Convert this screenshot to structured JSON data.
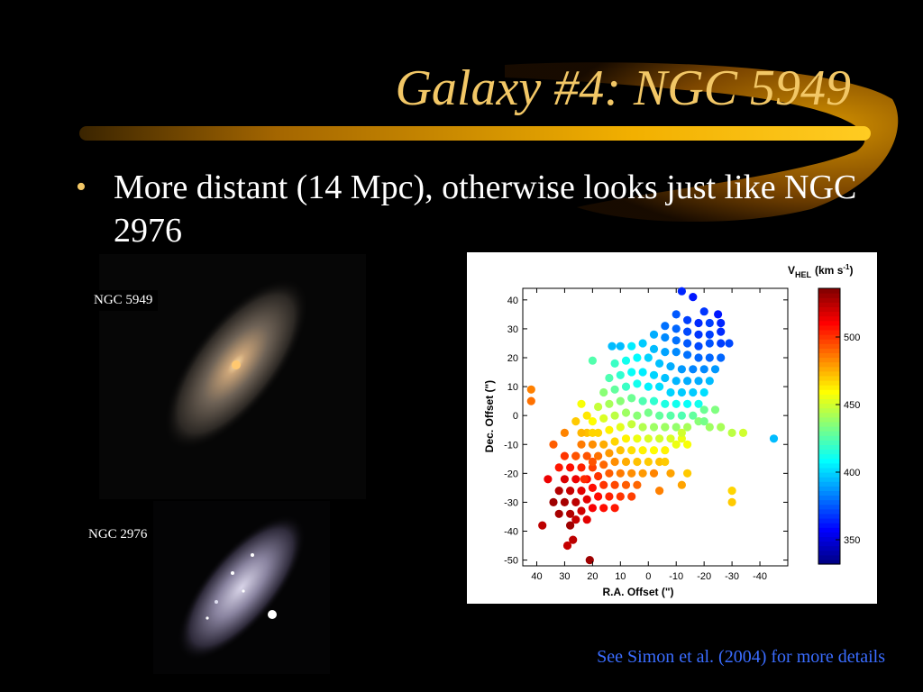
{
  "slide": {
    "title": "Galaxy #4: NGC 5949",
    "bullet": "More distant (14 Mpc), otherwise looks just like NGC 2976",
    "footer": "See Simon et al. (2004) for more details",
    "colors": {
      "title": "#f2c766",
      "footer": "#3a6cff",
      "swoosh": "#e8a000"
    }
  },
  "images": {
    "top_label": "NGC 5949",
    "bottom_label": "NGC 2976"
  },
  "chart_data": {
    "type": "scatter",
    "xlabel": "R.A. Offset (\")",
    "ylabel": "Dec. Offset (\")",
    "x_ticks": [
      40,
      30,
      20,
      10,
      0,
      -10,
      -20,
      -30,
      -40
    ],
    "y_ticks": [
      40,
      30,
      20,
      10,
      0,
      -10,
      -20,
      -30,
      -40,
      -50
    ],
    "xlim": [
      45,
      -50
    ],
    "ylim": [
      -52,
      44
    ],
    "x_reversed": true,
    "colorbar": {
      "label_main": "V",
      "label_sub": "HEL",
      "label_unit": "(km s",
      "label_exp": "-1",
      "label_close": ")",
      "ticks": [
        350,
        400,
        450,
        500
      ],
      "range": [
        332,
        536
      ]
    },
    "points": [
      [
        -12,
        43,
        365
      ],
      [
        -16,
        41,
        362
      ],
      [
        -20,
        36,
        368
      ],
      [
        -25,
        35,
        362
      ],
      [
        -10,
        35,
        375
      ],
      [
        -14,
        33,
        370
      ],
      [
        -18,
        32,
        366
      ],
      [
        -22,
        32,
        370
      ],
      [
        -26,
        32,
        365
      ],
      [
        -6,
        31,
        380
      ],
      [
        -10,
        30,
        378
      ],
      [
        -14,
        29,
        372
      ],
      [
        -18,
        28,
        368
      ],
      [
        -22,
        28,
        370
      ],
      [
        -26,
        29,
        366
      ],
      [
        -2,
        28,
        392
      ],
      [
        -6,
        27,
        385
      ],
      [
        -10,
        26,
        380
      ],
      [
        -14,
        25,
        375
      ],
      [
        -18,
        24,
        372
      ],
      [
        -22,
        25,
        374
      ],
      [
        -26,
        25,
        370
      ],
      [
        -29,
        25,
        372
      ],
      [
        2,
        25,
        398
      ],
      [
        6,
        24,
        405
      ],
      [
        -2,
        23,
        395
      ],
      [
        -6,
        22,
        390
      ],
      [
        -10,
        22,
        385
      ],
      [
        -14,
        21,
        380
      ],
      [
        -18,
        20,
        378
      ],
      [
        -22,
        20,
        378
      ],
      [
        -26,
        20,
        378
      ],
      [
        0,
        20,
        400
      ],
      [
        4,
        20,
        408
      ],
      [
        8,
        19,
        412
      ],
      [
        12,
        18,
        420
      ],
      [
        -4,
        18,
        396
      ],
      [
        -8,
        17,
        392
      ],
      [
        -12,
        16,
        388
      ],
      [
        -16,
        16,
        384
      ],
      [
        -20,
        16,
        385
      ],
      [
        -24,
        16,
        388
      ],
      [
        2,
        15,
        405
      ],
      [
        6,
        15,
        410
      ],
      [
        10,
        14,
        418
      ],
      [
        14,
        13,
        424
      ],
      [
        -2,
        14,
        400
      ],
      [
        -6,
        13,
        396
      ],
      [
        -10,
        12,
        394
      ],
      [
        -14,
        12,
        392
      ],
      [
        -18,
        12,
        392
      ],
      [
        -22,
        12,
        395
      ],
      [
        4,
        11,
        412
      ],
      [
        8,
        10,
        420
      ],
      [
        12,
        9,
        428
      ],
      [
        16,
        8,
        436
      ],
      [
        0,
        10,
        406
      ],
      [
        -4,
        10,
        402
      ],
      [
        -8,
        8,
        400
      ],
      [
        -12,
        8,
        398
      ],
      [
        -16,
        8,
        398
      ],
      [
        -20,
        8,
        402
      ],
      [
        6,
        6,
        430
      ],
      [
        10,
        5,
        436
      ],
      [
        14,
        4,
        442
      ],
      [
        18,
        3,
        448
      ],
      [
        2,
        5,
        424
      ],
      [
        -2,
        5,
        418
      ],
      [
        -6,
        4,
        414
      ],
      [
        -10,
        4,
        412
      ],
      [
        -14,
        4,
        410
      ],
      [
        -18,
        4,
        412
      ],
      [
        8,
        1,
        440
      ],
      [
        12,
        0,
        446
      ],
      [
        16,
        -1,
        452
      ],
      [
        20,
        -2,
        460
      ],
      [
        4,
        0,
        436
      ],
      [
        0,
        1,
        432
      ],
      [
        -4,
        0,
        428
      ],
      [
        -8,
        0,
        426
      ],
      [
        -12,
        0,
        424
      ],
      [
        -16,
        0,
        428
      ],
      [
        6,
        -3,
        448
      ],
      [
        10,
        -4,
        454
      ],
      [
        14,
        -5,
        462
      ],
      [
        18,
        -6,
        468
      ],
      [
        22,
        -6,
        472
      ],
      [
        2,
        -4,
        444
      ],
      [
        -2,
        -4,
        440
      ],
      [
        -6,
        -4,
        438
      ],
      [
        -10,
        -4,
        438
      ],
      [
        -14,
        -4,
        442
      ],
      [
        8,
        -8,
        462
      ],
      [
        12,
        -9,
        468
      ],
      [
        16,
        -10,
        476
      ],
      [
        20,
        -10,
        482
      ],
      [
        24,
        -10,
        486
      ],
      [
        4,
        -8,
        456
      ],
      [
        0,
        -8,
        452
      ],
      [
        -4,
        -8,
        450
      ],
      [
        -8,
        -8,
        452
      ],
      [
        -12,
        -8,
        456
      ],
      [
        10,
        -12,
        472
      ],
      [
        14,
        -13,
        480
      ],
      [
        18,
        -14,
        488
      ],
      [
        22,
        -14,
        494
      ],
      [
        26,
        -14,
        498
      ],
      [
        6,
        -12,
        466
      ],
      [
        2,
        -12,
        462
      ],
      [
        -2,
        -12,
        460
      ],
      [
        -6,
        -12,
        462
      ],
      [
        12,
        -16,
        482
      ],
      [
        16,
        -17,
        490
      ],
      [
        20,
        -18,
        498
      ],
      [
        24,
        -18,
        504
      ],
      [
        28,
        -18,
        508
      ],
      [
        8,
        -16,
        476
      ],
      [
        4,
        -16,
        472
      ],
      [
        0,
        -16,
        470
      ],
      [
        -4,
        -16,
        472
      ],
      [
        14,
        -20,
        492
      ],
      [
        18,
        -21,
        500
      ],
      [
        22,
        -22,
        508
      ],
      [
        26,
        -22,
        514
      ],
      [
        30,
        -22,
        518
      ],
      [
        10,
        -20,
        486
      ],
      [
        6,
        -20,
        482
      ],
      [
        2,
        -20,
        480
      ],
      [
        -2,
        -20,
        484
      ],
      [
        16,
        -24,
        500
      ],
      [
        20,
        -25,
        508
      ],
      [
        24,
        -26,
        516
      ],
      [
        28,
        -26,
        522
      ],
      [
        32,
        -26,
        526
      ],
      [
        12,
        -24,
        496
      ],
      [
        8,
        -24,
        492
      ],
      [
        4,
        -24,
        490
      ],
      [
        18,
        -28,
        508
      ],
      [
        22,
        -29,
        516
      ],
      [
        26,
        -30,
        524
      ],
      [
        30,
        -30,
        528
      ],
      [
        14,
        -28,
        504
      ],
      [
        10,
        -28,
        500
      ],
      [
        6,
        -28,
        498
      ],
      [
        20,
        -32,
        512
      ],
      [
        24,
        -33,
        520
      ],
      [
        28,
        -34,
        526
      ],
      [
        16,
        -32,
        508
      ],
      [
        12,
        -32,
        506
      ],
      [
        22,
        -36,
        516
      ],
      [
        26,
        -36,
        522
      ],
      [
        34,
        -30,
        530
      ],
      [
        32,
        -34,
        528
      ],
      [
        28,
        -38,
        530
      ],
      [
        42,
        9,
        485
      ],
      [
        42,
        5,
        488
      ],
      [
        38,
        -38,
        524
      ],
      [
        29,
        -45,
        522
      ],
      [
        27,
        -43,
        524
      ],
      [
        21,
        -50,
        530
      ],
      [
        23,
        -22,
        502
      ],
      [
        20,
        -16,
        494
      ],
      [
        20,
        -6,
        468
      ],
      [
        24,
        -6,
        474
      ],
      [
        26,
        -2,
        470
      ],
      [
        22,
        0,
        464
      ],
      [
        24,
        4,
        458
      ],
      [
        26,
        -14,
        494
      ],
      [
        30,
        -14,
        500
      ],
      [
        32,
        -18,
        506
      ],
      [
        36,
        -22,
        514
      ],
      [
        34,
        -10,
        492
      ],
      [
        30,
        -6,
        484
      ],
      [
        -12,
        -6,
        450
      ],
      [
        -14,
        -10,
        458
      ],
      [
        -10,
        -10,
        456
      ],
      [
        -6,
        -16,
        470
      ],
      [
        -8,
        -20,
        478
      ],
      [
        -4,
        -26,
        485
      ],
      [
        -12,
        -24,
        478
      ],
      [
        -14,
        -20,
        470
      ],
      [
        -18,
        -2,
        436
      ],
      [
        -22,
        -4,
        440
      ],
      [
        -20,
        2,
        430
      ],
      [
        -24,
        2,
        434
      ],
      [
        -26,
        -4,
        442
      ],
      [
        -30,
        -6,
        446
      ],
      [
        -34,
        -6,
        450
      ],
      [
        -45,
        -8,
        395
      ],
      [
        -30,
        -26,
        468
      ],
      [
        -30,
        -30,
        470
      ],
      [
        -20,
        -2,
        432
      ],
      [
        13,
        24,
        395
      ],
      [
        10,
        24,
        395
      ],
      [
        20,
        19,
        425
      ],
      [
        -6,
        -4,
        440
      ]
    ]
  }
}
